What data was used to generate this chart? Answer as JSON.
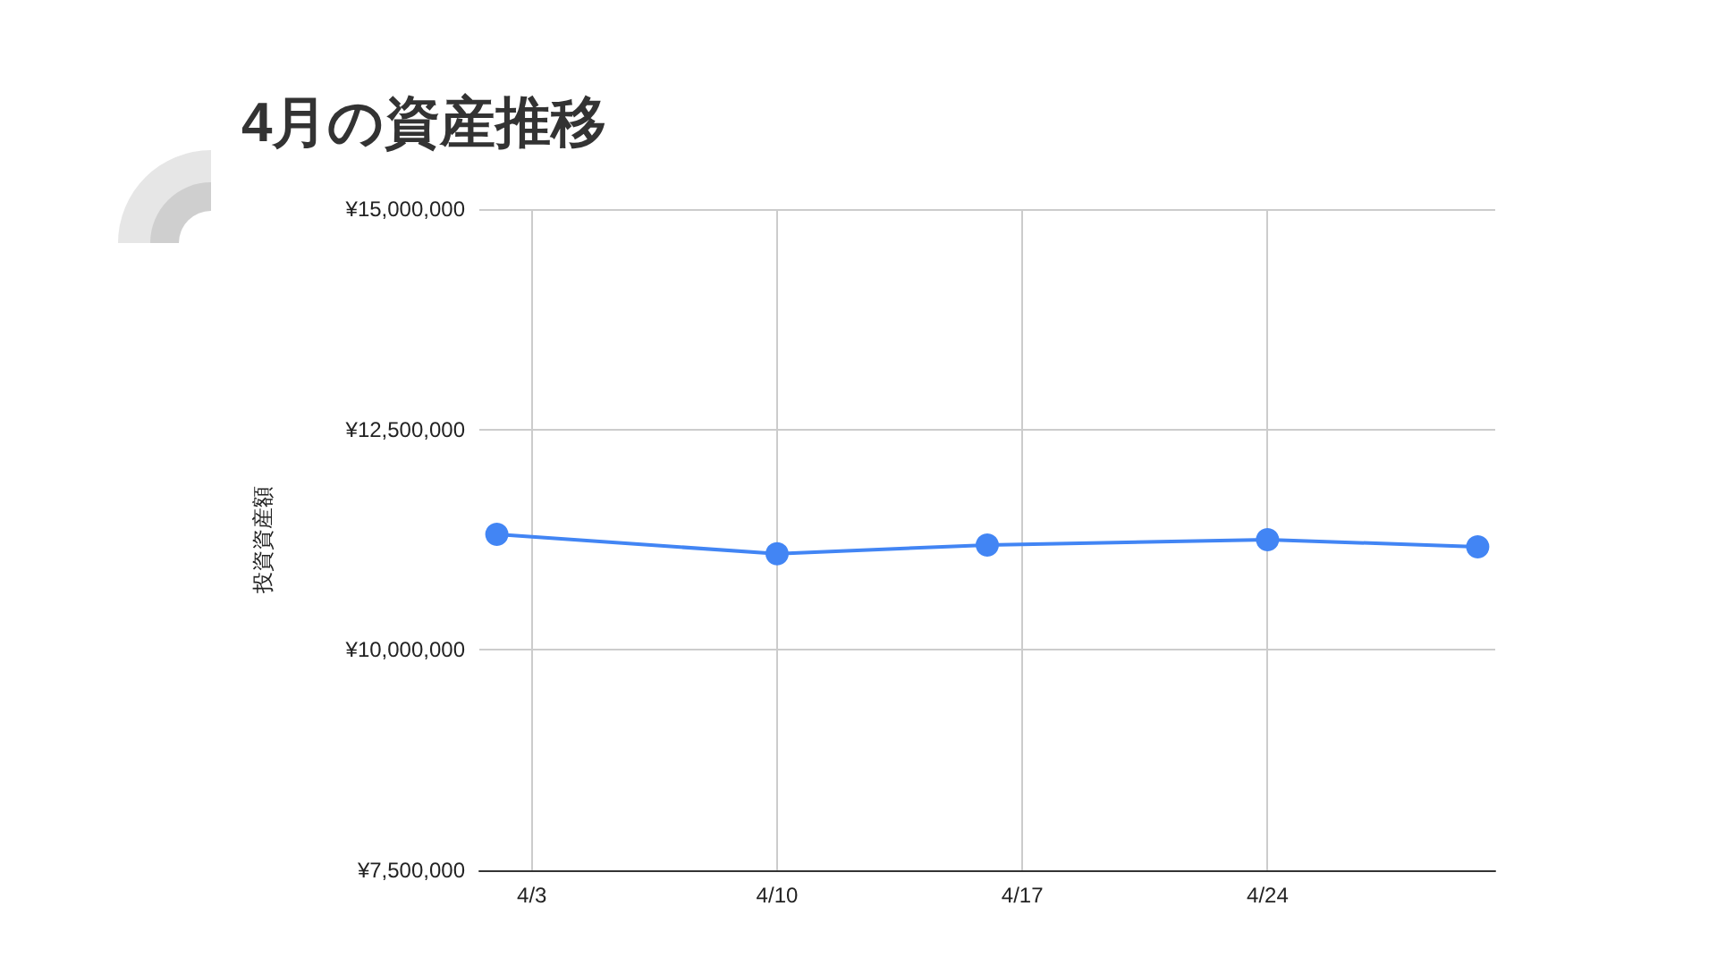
{
  "chart_data": {
    "type": "line",
    "title": "4月の資産推移",
    "ylabel": "投資資産額",
    "x": [
      "--04-02",
      "--04-10",
      "--04-16",
      "--04-24",
      "--04-30"
    ],
    "series": [
      {
        "color": "#4285f4",
        "values": [
          11310000,
          11090000,
          11190000,
          11250000,
          11170000
        ]
      }
    ],
    "xlim": [
      "--04-01T12:00",
      "--04-30T12:00"
    ],
    "xticks": [
      {
        "value": "--04-03",
        "label": "4/3"
      },
      {
        "value": "--04-10",
        "label": "4/10"
      },
      {
        "value": "--04-17",
        "label": "4/17"
      },
      {
        "value": "--04-24",
        "label": "4/24"
      }
    ],
    "ylim": [
      7500000,
      15000000
    ],
    "yticks": [
      {
        "value": 7500000,
        "label": "¥7,500,000"
      },
      {
        "value": 10000000,
        "label": "¥10,000,000"
      },
      {
        "value": 12500000,
        "label": "¥12,500,000"
      },
      {
        "value": 15000000,
        "label": "¥15,000,000"
      }
    ],
    "grid": true,
    "marker": "circle",
    "line_style": "solid"
  }
}
